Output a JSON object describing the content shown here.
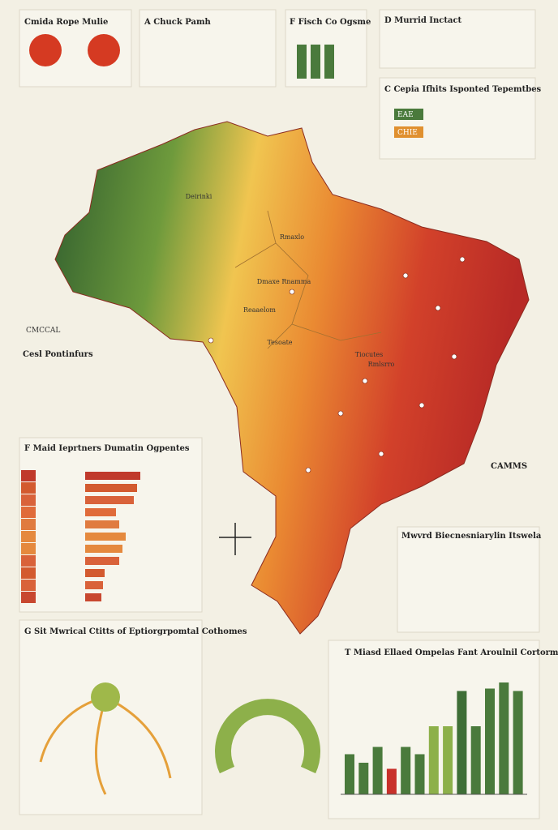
{
  "panels": {
    "tomato": {
      "title": "Cmida Rope Mulie"
    },
    "a": {
      "title": "A Chuck Pamh"
    },
    "f_top": {
      "title": "F Fisch Co Ogsme"
    },
    "d": {
      "title": "D Murrid Inctact"
    },
    "c": {
      "title": "C Cepia Ifhits Isponted Tepemtbes",
      "tags": [
        "EAE",
        "CHIE"
      ]
    },
    "cesl": {
      "title": "Cesl Pontinfurs",
      "header": "CMCCAL"
    },
    "g": {
      "title": "G Sit Mwrical Ctitts of Eptiorgrpomtal Cothomes"
    },
    "mwvrd": {
      "title": "Mwvrd Biecnesniarylin Itswela"
    },
    "camms": {
      "title": "CAMMS"
    }
  },
  "map": {
    "labels": [
      "Deirinki",
      "Rmaxlo",
      "Dmaxe Rnamma",
      "Reaaelom",
      "Tesoate",
      "Tiocutes",
      "Rmlsrro"
    ]
  },
  "hbar_panel": {
    "title": "F Maid Ieprtners Dumatin Ogpentes",
    "values": [
      68,
      64,
      60,
      38,
      42,
      50,
      46,
      42,
      24,
      22,
      20
    ],
    "colors": [
      "#c0392b",
      "#d35a2f",
      "#d9623a",
      "#e06b3a",
      "#e07b3f",
      "#e5893e",
      "#e5893e",
      "#d9623a",
      "#d35a2f",
      "#d9623a",
      "#c8472f"
    ]
  },
  "bar_panel": {
    "title": "T Miasd Ellaed Ompelas Fant Aroulnil Cortormis",
    "values": [
      33,
      26,
      39,
      21,
      39,
      33,
      56,
      56,
      85,
      56,
      87,
      92,
      85
    ],
    "colors": [
      "#4a7a3c",
      "#4a7a3c",
      "#4a7a3c",
      "#c8302a",
      "#4a7a3c",
      "#4a7a3c",
      "#8db04a",
      "#8db04a",
      "#3e6e36",
      "#4a7a3c",
      "#4a7a3c",
      "#4a7a3c",
      "#4a7a3c"
    ]
  }
}
